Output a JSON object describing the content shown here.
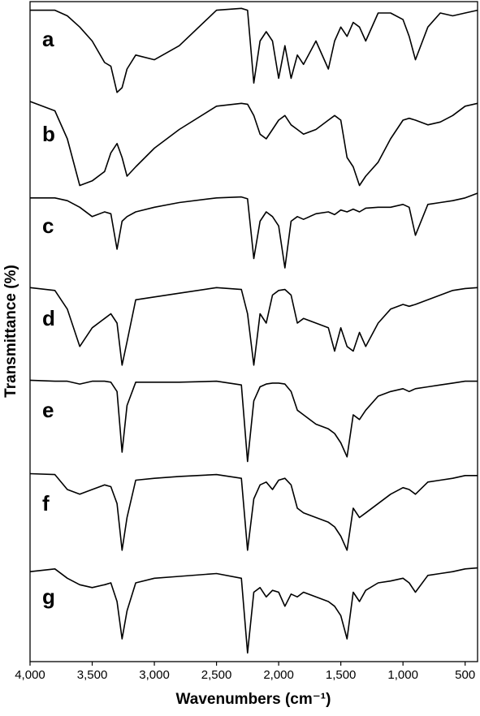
{
  "chart_data": {
    "type": "line",
    "x_label": "Wavenumbers (cm⁻¹)",
    "y_label": "Transmittance (%)",
    "xlim": [
      4000,
      400
    ],
    "ylim": [
      0,
      100
    ],
    "xticks": [
      {
        "value": 4000,
        "label": "4,000"
      },
      {
        "value": 3500,
        "label": "3,500"
      },
      {
        "value": 3000,
        "label": "3,000"
      },
      {
        "value": 2500,
        "label": "2,500"
      },
      {
        "value": 2000,
        "label": "2,000"
      },
      {
        "value": 1500,
        "label": "1,500"
      },
      {
        "value": 1000,
        "label": "1,000"
      },
      500
    ],
    "x": [
      4000,
      3800,
      3700,
      3600,
      3500,
      3400,
      3350,
      3300,
      3260,
      3220,
      3150,
      3000,
      2800,
      2500,
      2300,
      2250,
      2200,
      2150,
      2100,
      2050,
      2000,
      1950,
      1900,
      1850,
      1800,
      1700,
      1600,
      1550,
      1500,
      1450,
      1400,
      1350,
      1300,
      1200,
      1100,
      1000,
      950,
      900,
      800,
      700,
      600,
      500,
      400
    ],
    "series": [
      {
        "name": "a",
        "color": "#000000",
        "values": [
          96,
          96,
          90,
          78,
          63,
          40,
          36,
          8,
          13,
          33,
          48,
          43,
          58,
          96,
          98,
          96,
          18,
          63,
          73,
          63,
          23,
          58,
          23,
          48,
          38,
          63,
          33,
          63,
          78,
          68,
          83,
          78,
          63,
          93,
          93,
          86,
          68,
          43,
          78,
          93,
          90,
          93,
          96
        ]
      },
      {
        "name": "b",
        "color": "#000000",
        "values": [
          100,
          90,
          60,
          10,
          15,
          25,
          45,
          55,
          40,
          20,
          30,
          50,
          70,
          95,
          98,
          97,
          85,
          65,
          60,
          70,
          80,
          85,
          75,
          70,
          65,
          70,
          80,
          85,
          80,
          40,
          30,
          10,
          20,
          35,
          60,
          80,
          82,
          80,
          75,
          78,
          85,
          95,
          98
        ]
      },
      {
        "name": "c",
        "color": "#000000",
        "values": [
          95,
          95,
          92,
          85,
          75,
          80,
          78,
          40,
          70,
          75,
          80,
          85,
          90,
          95,
          96,
          94,
          30,
          70,
          80,
          75,
          65,
          20,
          70,
          75,
          72,
          78,
          80,
          77,
          82,
          80,
          83,
          80,
          84,
          85,
          85,
          88,
          85,
          55,
          88,
          90,
          92,
          95,
          100
        ]
      },
      {
        "name": "d",
        "color": "#000000",
        "values": [
          98,
          95,
          75,
          35,
          55,
          65,
          70,
          60,
          15,
          40,
          85,
          88,
          92,
          98,
          96,
          70,
          15,
          70,
          60,
          90,
          95,
          96,
          90,
          60,
          65,
          60,
          55,
          30,
          55,
          35,
          30,
          50,
          35,
          60,
          75,
          80,
          78,
          80,
          85,
          90,
          95,
          97,
          98
        ]
      },
      {
        "name": "e",
        "color": "#000000",
        "values": [
          97,
          96,
          96,
          93,
          96,
          96,
          95,
          85,
          20,
          70,
          95,
          95,
          95,
          96,
          92,
          10,
          75,
          90,
          93,
          94,
          94,
          93,
          85,
          65,
          60,
          50,
          45,
          40,
          30,
          15,
          60,
          55,
          65,
          80,
          85,
          88,
          85,
          88,
          90,
          92,
          94,
          96,
          96
        ]
      },
      {
        "name": "f",
        "color": "#000000",
        "values": [
          97,
          96,
          80,
          75,
          80,
          85,
          83,
          65,
          15,
          50,
          90,
          92,
          94,
          96,
          92,
          15,
          70,
          85,
          88,
          80,
          90,
          92,
          85,
          60,
          55,
          50,
          45,
          40,
          30,
          15,
          60,
          50,
          55,
          65,
          75,
          82,
          80,
          75,
          88,
          90,
          92,
          95,
          95
        ]
      },
      {
        "name": "g",
        "color": "#000000",
        "values": [
          92,
          95,
          85,
          78,
          75,
          78,
          80,
          60,
          20,
          50,
          80,
          85,
          87,
          90,
          85,
          5,
          70,
          75,
          65,
          72,
          70,
          55,
          68,
          65,
          70,
          65,
          60,
          55,
          45,
          20,
          70,
          60,
          72,
          80,
          82,
          85,
          80,
          70,
          88,
          90,
          92,
          95,
          96
        ]
      }
    ]
  }
}
